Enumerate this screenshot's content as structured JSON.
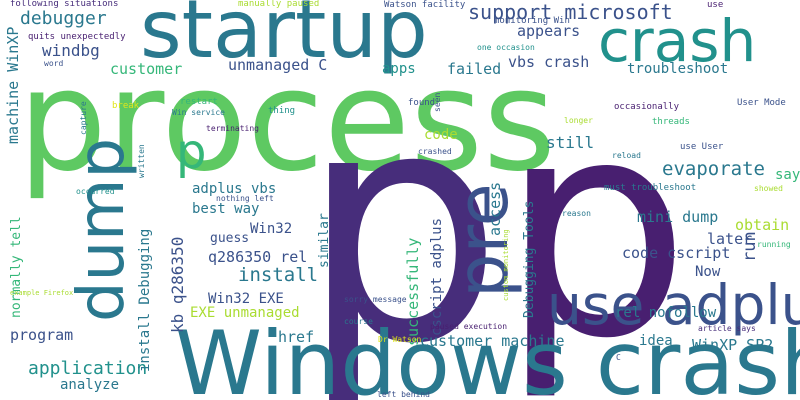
{
  "words": {
    "process": "process",
    "p_big": "p",
    "p_big2": "p",
    "windows_crashes": "Windows crashes",
    "startup": "startup",
    "crash": "crash",
    "use_adplus": "use adplus",
    "dump": "dump",
    "pre": "pre",
    "support_microsoft": "support microsoft",
    "debugger": "debugger",
    "windbg": "windbg",
    "customer": "customer",
    "unmanaged_c": "unmanaged C",
    "appears": "appears",
    "vbs_crash": "vbs crash",
    "failed": "failed",
    "apps": "apps",
    "troubleshoot": "troubleshoot",
    "p_small": "p",
    "code": "code",
    "still": "still",
    "evaporate": "evaporate",
    "mini_dump": "mini dump",
    "obtain": "obtain",
    "later": "later",
    "code_cscript": "code cscript",
    "now": "Now",
    "rel_nofollow": "rel nofollow",
    "idea": "idea",
    "winxp_sp2": "WinXP SP2",
    "customer_machine": "customer machine",
    "adplus_vbs": "adplus vbs",
    "best_way": "best way",
    "win32": "Win32",
    "guess": "guess",
    "q286350_rel": "q286350 rel",
    "install": "install",
    "win32_exe": "Win32 EXE",
    "exe_unmanaged": "EXE unmanaged",
    "href": "href",
    "program": "program",
    "application": "application",
    "analyze": "analyze",
    "says": "says",
    "machine_winxp": "machine WinXP",
    "normally_tell": "normally tell",
    "kb_q286350": "kb q286350",
    "install_debugging": "install Debugging",
    "similar": "similar",
    "successfully": "successfully",
    "cscript_adplus": "cscript adplus",
    "access": "access",
    "debugging_tools": "Debugging Tools",
    "run": "run",
    "following_situations": "following situations",
    "manually_paused": "manually paused",
    "watson_facility": "Watson facility",
    "use_tr": "use",
    "quits_unexpectedly": "quits unexpectedly",
    "monitoring_win": "monitoring Win",
    "word": "word",
    "one_occasion": "one occasion",
    "break": "break",
    "restart": "restart",
    "win_service": "Win service",
    "capture": "capture",
    "thing": "thing",
    "found": "found",
    "seen": "seen",
    "occasionally": "occasionally",
    "user_mode": "User Mode",
    "longer": "longer",
    "threads": "threads",
    "terminating": "terminating",
    "crashed": "crashed",
    "reload": "reload",
    "use_user": "use User",
    "written": "written",
    "occurred": "occurred",
    "nothing_left": "nothing left",
    "must_troubleshoot": "must troubleshoot",
    "showed": "showed",
    "reason": "reason",
    "running": "running",
    "example_firefox": "example Firefox",
    "custom_monitoring": "custom monitoring",
    "sorry_message": "sorry message",
    "course": "course",
    "dr_watson": "Dr Watson",
    "paused_execution": "paused execution",
    "article_says": "article says",
    "left_behind": "left behind",
    "c_small": "C"
  },
  "colors": {
    "green": "#5ec962",
    "lime": "#aadc32",
    "yellow": "#e0e61a",
    "teal": "#21918c",
    "blue": "#2a788e",
    "dark_blue": "#3b528b",
    "purple": "#472d7b",
    "deep_purple": "#481f70",
    "mint": "#35b779",
    "aqua": "#22a884"
  }
}
